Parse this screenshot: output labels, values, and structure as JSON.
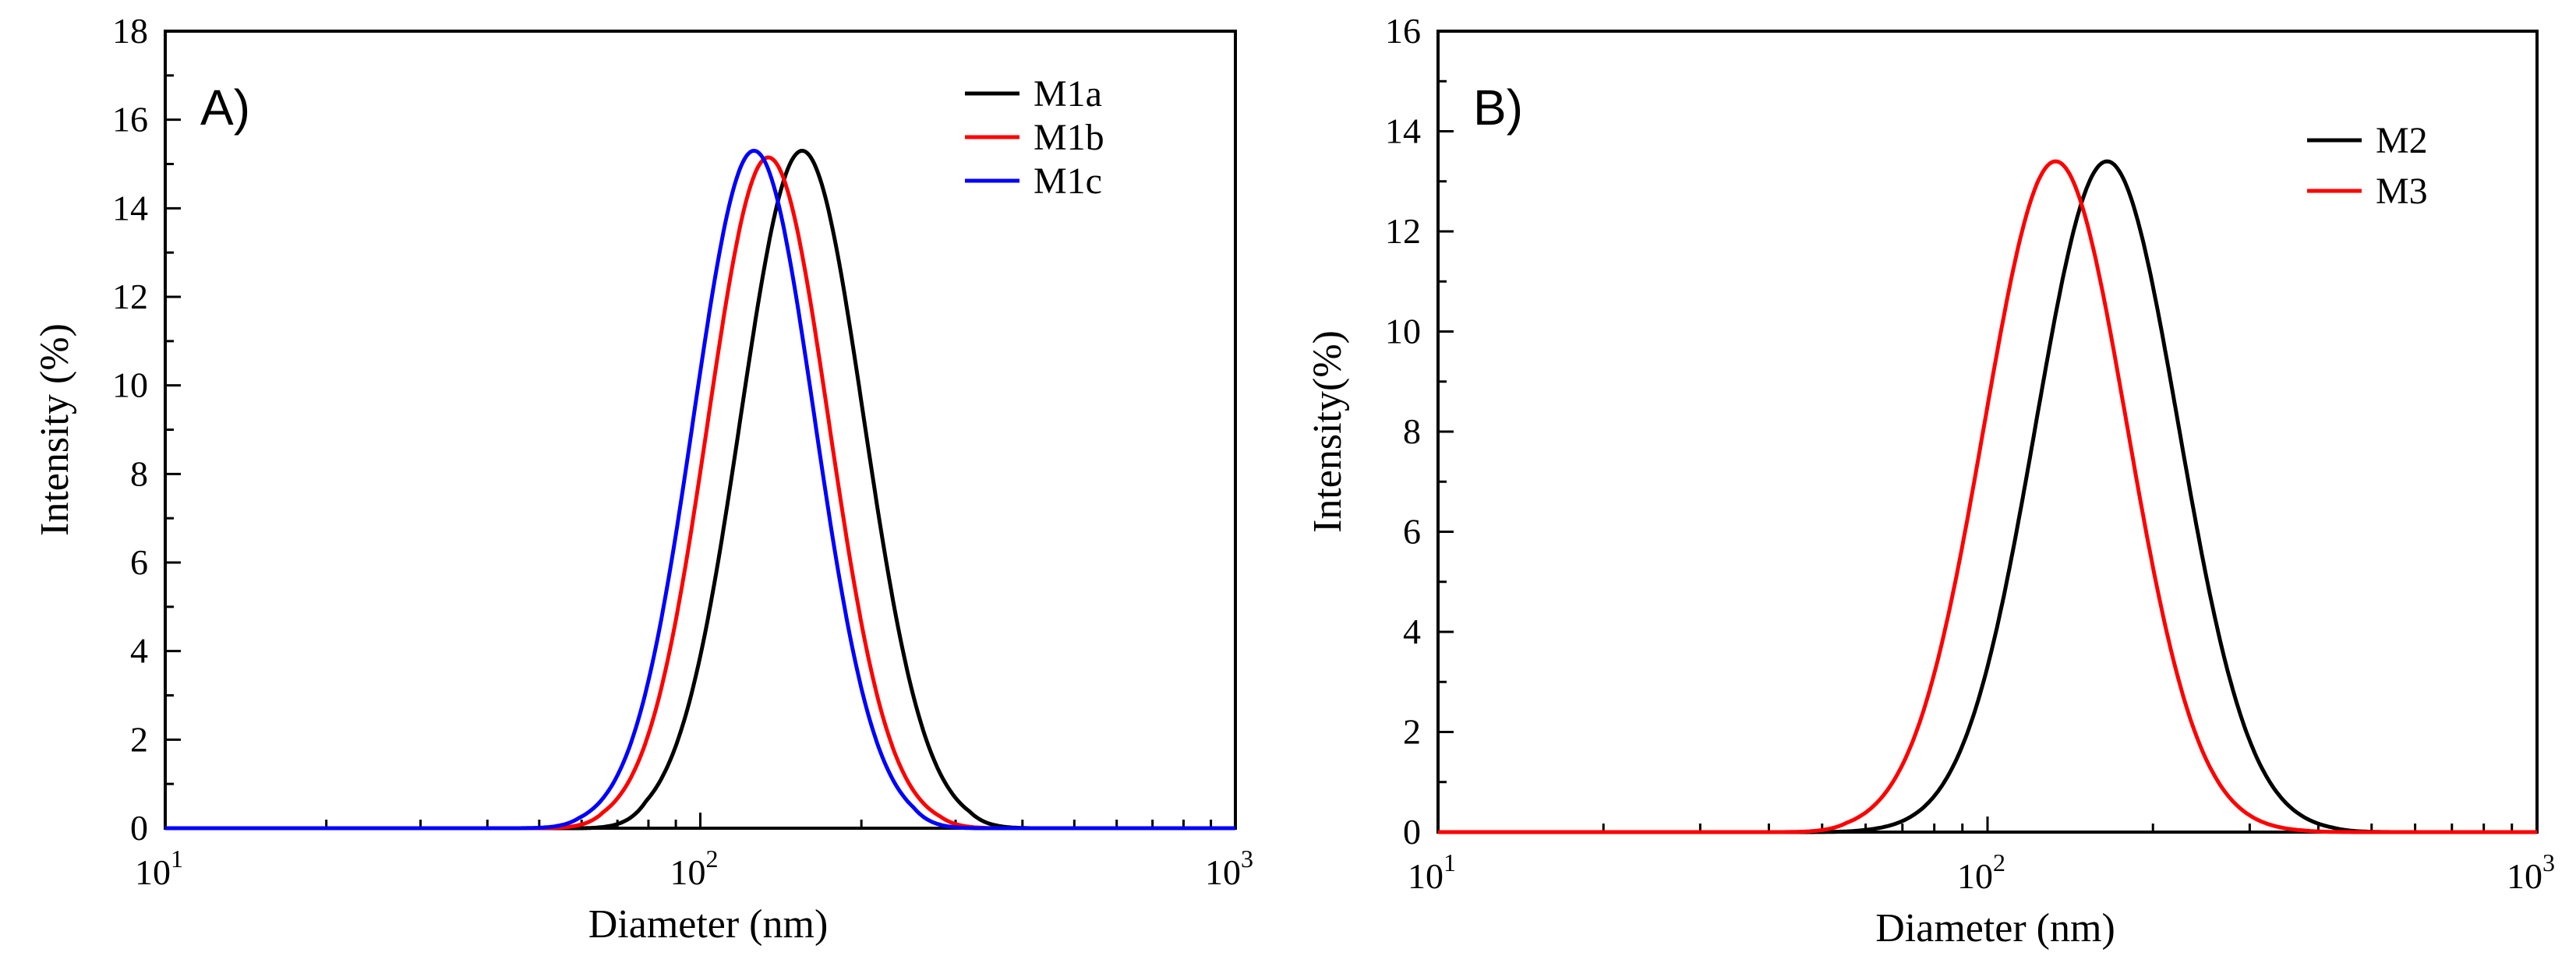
{
  "chart_data": [
    {
      "type": "line",
      "panel_label": "A)",
      "xscale": "log",
      "xlim": [
        10,
        1000
      ],
      "xticks": [
        {
          "value": 10,
          "base": "10",
          "exp": "1"
        },
        {
          "value": 100,
          "base": "10",
          "exp": "2"
        },
        {
          "value": 1000,
          "base": "10",
          "exp": "3"
        }
      ],
      "ylim": [
        0,
        18
      ],
      "yticks": [
        "0",
        "2",
        "4",
        "6",
        "8",
        "10",
        "12",
        "14",
        "16",
        "18"
      ],
      "xlabel": "Diameter (nm)",
      "ylabel": "Intensity (%)",
      "legend_position": "top-right",
      "series": [
        {
          "name": "M1a",
          "color": "#000000",
          "peak_x": 155,
          "peak_y": 15.3,
          "sigma": 0.115,
          "low_cut": 60,
          "high_cut": 420
        },
        {
          "name": "M1b",
          "color": "#ff0000",
          "peak_x": 134,
          "peak_y": 15.15,
          "sigma": 0.113,
          "low_cut": 50,
          "high_cut": 370
        },
        {
          "name": "M1c",
          "color": "#0000ff",
          "peak_x": 126,
          "peak_y": 15.3,
          "sigma": 0.113,
          "low_cut": 45,
          "high_cut": 330
        }
      ]
    },
    {
      "type": "line",
      "panel_label": "B)",
      "xscale": "log",
      "xlim": [
        10,
        1000
      ],
      "xticks": [
        {
          "value": 10,
          "base": "10",
          "exp": "1"
        },
        {
          "value": 100,
          "base": "10",
          "exp": "2"
        },
        {
          "value": 1000,
          "base": "10",
          "exp": "3"
        }
      ],
      "ylim": [
        0,
        16
      ],
      "yticks": [
        "0",
        "2",
        "4",
        "6",
        "8",
        "10",
        "12",
        "14",
        "16"
      ],
      "xlabel": "Diameter (nm)",
      "ylabel": "Intensity(%)",
      "legend_position": "top-right",
      "series": [
        {
          "name": "M2",
          "color": "#000000",
          "peak_x": 165,
          "peak_y": 13.4,
          "sigma": 0.13,
          "low_cut": 45,
          "high_cut": 560
        },
        {
          "name": "M3",
          "color": "#ff0000",
          "peak_x": 133,
          "peak_y": 13.4,
          "sigma": 0.13,
          "low_cut": 42,
          "high_cut": 500
        }
      ]
    }
  ]
}
